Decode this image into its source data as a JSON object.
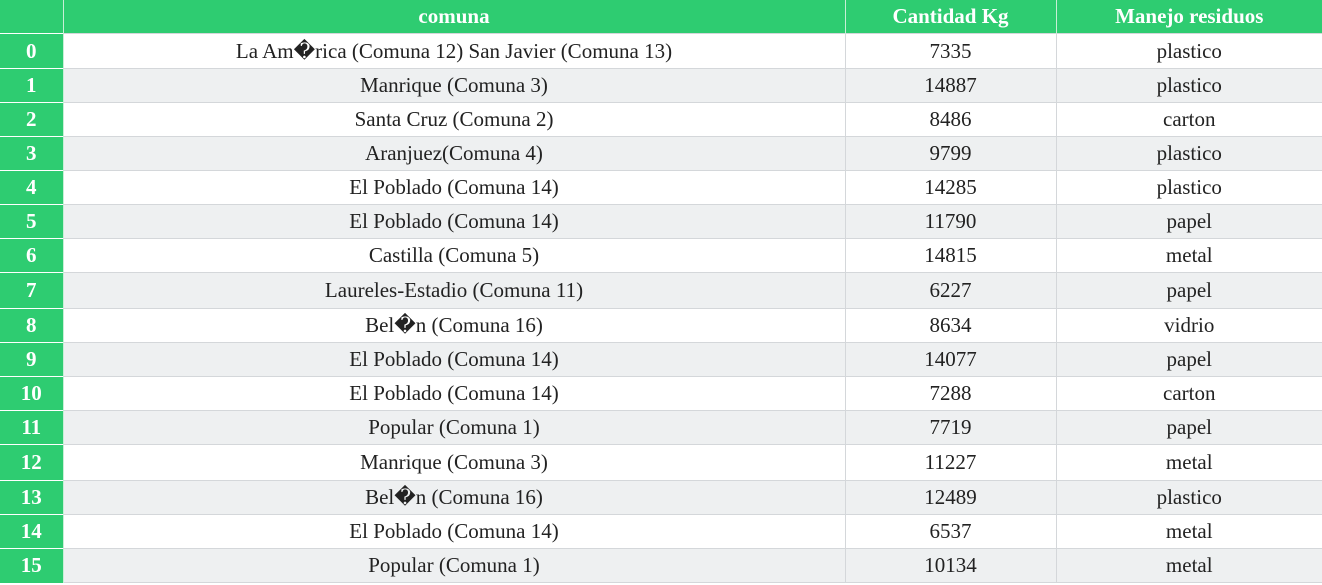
{
  "table": {
    "headers": [
      "",
      "comuna",
      "Cantidad Kg",
      "Manejo residuos"
    ],
    "rows": [
      {
        "idx": "0",
        "comuna": "La Am�rica (Comuna 12) San Javier (Comuna 13)",
        "cantidad": "7335",
        "manejo": "plastico"
      },
      {
        "idx": "1",
        "comuna": "Manrique (Comuna 3)",
        "cantidad": "14887",
        "manejo": "plastico"
      },
      {
        "idx": "2",
        "comuna": "Santa Cruz (Comuna 2)",
        "cantidad": "8486",
        "manejo": "carton"
      },
      {
        "idx": "3",
        "comuna": "Aranjuez(Comuna 4)",
        "cantidad": "9799",
        "manejo": "plastico"
      },
      {
        "idx": "4",
        "comuna": "El Poblado (Comuna 14)",
        "cantidad": "14285",
        "manejo": "plastico"
      },
      {
        "idx": "5",
        "comuna": "El Poblado (Comuna 14)",
        "cantidad": "11790",
        "manejo": "papel"
      },
      {
        "idx": "6",
        "comuna": "Castilla (Comuna 5)",
        "cantidad": "14815",
        "manejo": "metal"
      },
      {
        "idx": "7",
        "comuna": "Laureles-Estadio (Comuna 11)",
        "cantidad": "6227",
        "manejo": "papel"
      },
      {
        "idx": "8",
        "comuna": "Bel�n (Comuna 16)",
        "cantidad": "8634",
        "manejo": "vidrio"
      },
      {
        "idx": "9",
        "comuna": "El Poblado (Comuna 14)",
        "cantidad": "14077",
        "manejo": "papel"
      },
      {
        "idx": "10",
        "comuna": "El Poblado (Comuna 14)",
        "cantidad": "7288",
        "manejo": "carton"
      },
      {
        "idx": "11",
        "comuna": "Popular (Comuna 1)",
        "cantidad": "7719",
        "manejo": "papel"
      },
      {
        "idx": "12",
        "comuna": "Manrique (Comuna 3)",
        "cantidad": "11227",
        "manejo": "metal"
      },
      {
        "idx": "13",
        "comuna": "Bel�n (Comuna 16)",
        "cantidad": "12489",
        "manejo": "plastico"
      },
      {
        "idx": "14",
        "comuna": "El Poblado (Comuna 14)",
        "cantidad": "6537",
        "manejo": "metal"
      },
      {
        "idx": "15",
        "comuna": "Popular (Comuna 1)",
        "cantidad": "10134",
        "manejo": "metal"
      }
    ]
  },
  "colors": {
    "header_bg": "#2ecc71",
    "header_text": "#ffffff",
    "stripe_bg": "#eef0f1"
  }
}
